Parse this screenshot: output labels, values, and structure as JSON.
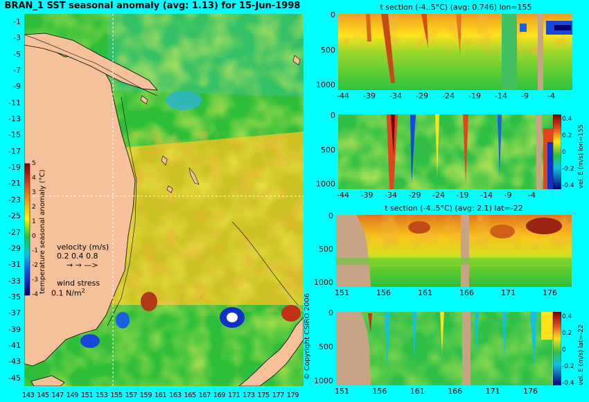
{
  "map": {
    "title": "BRAN_1 SST seasonal anomaly (avg: 1.13) for 15-Jun-1998",
    "lat_ticks": [
      "-1",
      "-3",
      "-5",
      "-7",
      "-9",
      "-11",
      "-13",
      "-15",
      "-17",
      "-19",
      "-21",
      "-23",
      "-25",
      "-27",
      "-29",
      "-31",
      "-33",
      "-35",
      "-37",
      "-39",
      "-41",
      "-43",
      "-45"
    ],
    "lon_ticks": [
      "143",
      "145",
      "147",
      "149",
      "151",
      "153",
      "155",
      "157",
      "159",
      "161",
      "163",
      "165",
      "167",
      "169",
      "171",
      "173",
      "175",
      "177",
      "179"
    ],
    "colorbar": {
      "label": "temperature seasonal anomaly (°C)",
      "ticks": [
        "5",
        "4",
        "3",
        "2",
        "1",
        "0",
        "-1",
        "-2",
        "-3",
        "-4"
      ],
      "range": [
        -4,
        5
      ]
    },
    "velocity_legend": {
      "title": "velocity (m/s)",
      "values": "0.2 0.4 0.8",
      "arrows": "→ → —>"
    },
    "wind_legend": {
      "title": "wind stress",
      "value": "0.1 N/m",
      "exp": "2"
    },
    "crosshair": {
      "lon": 155,
      "lat": -22
    },
    "colors": {
      "ocean_base": "#2fbe3a",
      "land": "#f5c09a",
      "background": "#00ffff"
    }
  },
  "copyright": "© Copyright CSIRO 2006",
  "panels": [
    {
      "title": "t section (-4..5°C) (avg: 0.746) lon=155",
      "y_ticks": [
        "0",
        "500",
        "1000"
      ],
      "x_ticks": [
        "-44",
        "-39",
        "-34",
        "-29",
        "-24",
        "-19",
        "-14",
        "-9",
        "-4"
      ]
    },
    {
      "title": "",
      "y_ticks": [
        "0",
        "500",
        "1000"
      ],
      "x_ticks": [
        "-44",
        "-39",
        "-34",
        "-29",
        "-24",
        "-19",
        "-14",
        "-9",
        "-4"
      ],
      "colorbar_label": "vel. E (m/s) lon=155",
      "colorbar_ticks": [
        "0.4",
        "0.2",
        "0",
        "-0.2",
        "-0.4"
      ]
    },
    {
      "title": "t section (-4..5°C) (avg: 2.1) lat=-22",
      "y_ticks": [
        "0",
        "500",
        "1000"
      ],
      "x_ticks": [
        "151",
        "156",
        "161",
        "166",
        "171",
        "176"
      ]
    },
    {
      "title": "",
      "y_ticks": [
        "0",
        "500",
        "1000"
      ],
      "x_ticks": [
        "151",
        "156",
        "161",
        "166",
        "171",
        "176"
      ],
      "colorbar_label": "vel. E (m/s) lat=-22",
      "colorbar_ticks": [
        "0.4",
        "0.2",
        "0",
        "-0.2",
        "-0.4"
      ]
    }
  ]
}
